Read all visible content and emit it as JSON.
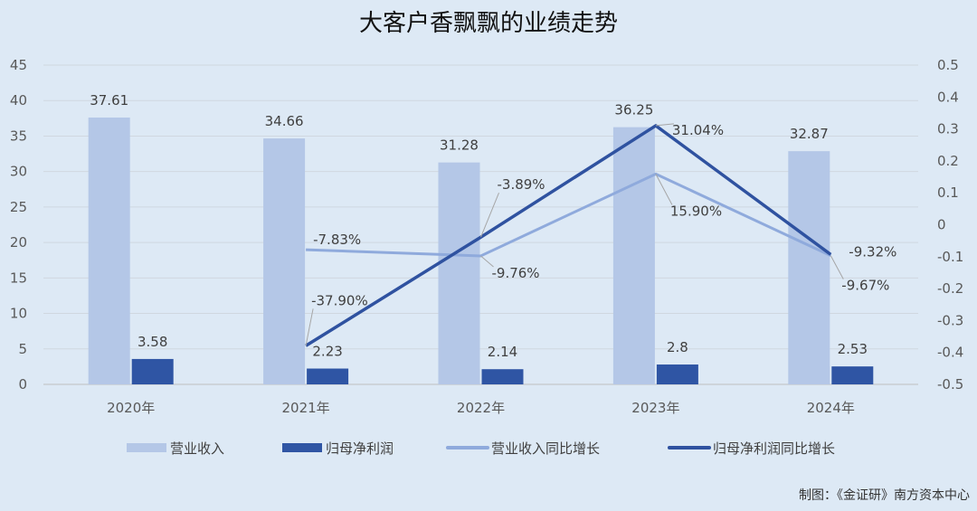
{
  "chart_data": {
    "type": "bar",
    "title": "大客户香飘飘的业绩走势",
    "categories": [
      "2020年",
      "2021年",
      "2022年",
      "2023年",
      "2024年"
    ],
    "left_axis": {
      "range": [
        0,
        45
      ],
      "ticks": [
        "0",
        "5",
        "10",
        "15",
        "20",
        "25",
        "30",
        "35",
        "40",
        "45"
      ]
    },
    "right_axis": {
      "range": [
        -0.5,
        0.5
      ],
      "ticks": [
        "-0.5",
        "-0.4",
        "-0.3",
        "-0.2",
        "-0.1",
        "0",
        "0.1",
        "0.2",
        "0.3",
        "0.4",
        "0.5"
      ]
    },
    "grid": true,
    "legend_position": "bottom",
    "series": [
      {
        "name": "营业收入",
        "kind": "bar",
        "axis": "left",
        "color": "#b4c7e7",
        "values": [
          37.61,
          34.66,
          31.28,
          36.25,
          32.87
        ],
        "labels": [
          "37.61",
          "34.66",
          "31.28",
          "36.25",
          "32.87"
        ]
      },
      {
        "name": "归母净利润",
        "kind": "bar",
        "axis": "left",
        "color": "#2f55a4",
        "values": [
          3.58,
          2.23,
          2.14,
          2.8,
          2.53
        ],
        "labels": [
          "3.58",
          "2.23",
          "2.14",
          "2.8",
          "2.53"
        ]
      },
      {
        "name": "营业收入同比增长",
        "kind": "line",
        "axis": "right",
        "color": "#8faadc",
        "values": [
          null,
          -0.0783,
          -0.0976,
          0.159,
          -0.0967
        ],
        "labels": [
          null,
          "-7.83%",
          "-9.76%",
          "15.90%",
          "-9.67%"
        ]
      },
      {
        "name": "归母净利润同比增长",
        "kind": "line",
        "axis": "right",
        "color": "#2f52a0",
        "values": [
          null,
          -0.379,
          -0.0389,
          0.3104,
          -0.0932
        ],
        "labels": [
          null,
          "-37.90%",
          "-3.89%",
          "31.04%",
          "-9.32%"
        ]
      }
    ],
    "source": "制图：《金证研》南方资本中心"
  }
}
